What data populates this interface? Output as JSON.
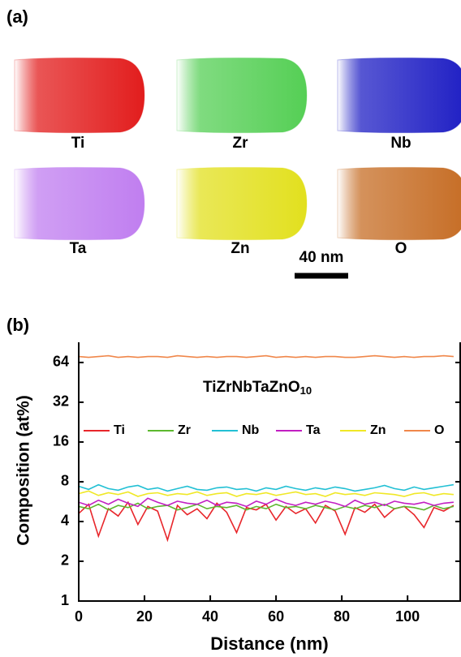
{
  "panel_a": {
    "label": "(a)",
    "scale_bar": "40 nm",
    "maps": [
      {
        "element": "Ti",
        "color": "#e21d1d"
      },
      {
        "element": "Zr",
        "color": "#55cf55"
      },
      {
        "element": "Nb",
        "color": "#1f1fc4"
      },
      {
        "element": "Ta",
        "color": "#c07ef0"
      },
      {
        "element": "Zn",
        "color": "#e2e01e"
      },
      {
        "element": "O",
        "color": "#c66d25"
      }
    ]
  },
  "chart_data": {
    "type": "line",
    "label": "(b)",
    "x_label": "Distance (nm)",
    "y_label": "Composition (at%)",
    "annotation": {
      "main": "TiZrNbTaZnO",
      "sub": "10"
    },
    "yscale": "log",
    "log_base": 2,
    "xlim": [
      0,
      116
    ],
    "xticks": [
      0,
      20,
      40,
      60,
      80,
      100
    ],
    "ylim": [
      1,
      91
    ],
    "yticks": [
      1,
      2,
      4,
      8,
      16,
      32,
      64
    ],
    "x": [
      0,
      3,
      6,
      9,
      12,
      15,
      18,
      21,
      24,
      27,
      30,
      33,
      36,
      39,
      42,
      45,
      48,
      51,
      54,
      57,
      60,
      63,
      66,
      69,
      72,
      75,
      78,
      81,
      84,
      87,
      90,
      93,
      96,
      99,
      102,
      105,
      108,
      111,
      114
    ],
    "series": [
      {
        "name": "Ti",
        "color": "#e8262b",
        "values": [
          4.6,
          5.4,
          3.1,
          5.0,
          4.4,
          5.6,
          3.8,
          5.2,
          4.8,
          2.9,
          5.3,
          4.5,
          5.0,
          4.2,
          5.5,
          4.7,
          3.3,
          5.1,
          4.9,
          5.4,
          4.1,
          5.2,
          4.6,
          5.0,
          3.9,
          5.3,
          4.8,
          3.2,
          5.1,
          4.7,
          5.4,
          4.3,
          5.0,
          5.2,
          4.5,
          3.6,
          5.1,
          4.8,
          5.3
        ]
      },
      {
        "name": "Zr",
        "color": "#5cb82e",
        "values": [
          5.2,
          5.0,
          5.4,
          4.9,
          5.3,
          5.1,
          5.5,
          5.0,
          5.2,
          5.3,
          4.9,
          5.1,
          5.4,
          5.0,
          5.2,
          5.1,
          5.3,
          4.9,
          5.2,
          5.0,
          5.4,
          5.1,
          5.2,
          5.0,
          5.3,
          5.1,
          4.9,
          5.2,
          5.0,
          5.3,
          5.1,
          5.4,
          5.0,
          5.2,
          5.1,
          4.9,
          5.3,
          5.0,
          5.2
        ]
      },
      {
        "name": "Nb",
        "color": "#22c0d4",
        "values": [
          7.4,
          7.0,
          7.6,
          7.1,
          6.9,
          7.3,
          7.5,
          7.0,
          7.2,
          6.8,
          7.1,
          7.4,
          7.0,
          6.9,
          7.2,
          7.3,
          7.0,
          7.1,
          6.8,
          7.2,
          7.0,
          7.4,
          7.1,
          6.9,
          7.2,
          7.0,
          7.3,
          7.1,
          6.8,
          7.0,
          7.2,
          7.5,
          7.1,
          6.9,
          7.3,
          7.0,
          7.2,
          7.4,
          7.6
        ]
      },
      {
        "name": "Ta",
        "color": "#c21fc2",
        "values": [
          5.6,
          5.3,
          5.8,
          5.4,
          5.9,
          5.5,
          5.2,
          6.0,
          5.6,
          5.3,
          5.7,
          5.5,
          5.4,
          5.8,
          5.3,
          5.6,
          5.5,
          5.2,
          5.7,
          5.4,
          5.9,
          5.5,
          5.3,
          5.6,
          5.4,
          5.7,
          5.5,
          5.2,
          5.8,
          5.4,
          5.6,
          5.3,
          5.7,
          5.5,
          5.4,
          5.6,
          5.3,
          5.5,
          5.6
        ]
      },
      {
        "name": "Zn",
        "color": "#f0e826",
        "values": [
          6.5,
          6.8,
          6.3,
          6.6,
          6.4,
          6.7,
          6.2,
          6.5,
          6.6,
          6.3,
          6.5,
          6.4,
          6.7,
          6.3,
          6.5,
          6.6,
          6.2,
          6.5,
          6.4,
          6.6,
          6.3,
          6.5,
          6.7,
          6.4,
          6.5,
          6.2,
          6.6,
          6.4,
          6.5,
          6.3,
          6.6,
          6.5,
          6.4,
          6.2,
          6.5,
          6.6,
          6.3,
          6.5,
          6.4
        ]
      },
      {
        "name": "O",
        "color": "#f0874a",
        "values": [
          71,
          70,
          71,
          72,
          70,
          71,
          70,
          71,
          71,
          70,
          72,
          71,
          70,
          71,
          70,
          71,
          71,
          70,
          71,
          72,
          70,
          71,
          70,
          71,
          70,
          71,
          71,
          70,
          70,
          71,
          72,
          71,
          70,
          71,
          70,
          71,
          71,
          72,
          71
        ]
      }
    ]
  }
}
